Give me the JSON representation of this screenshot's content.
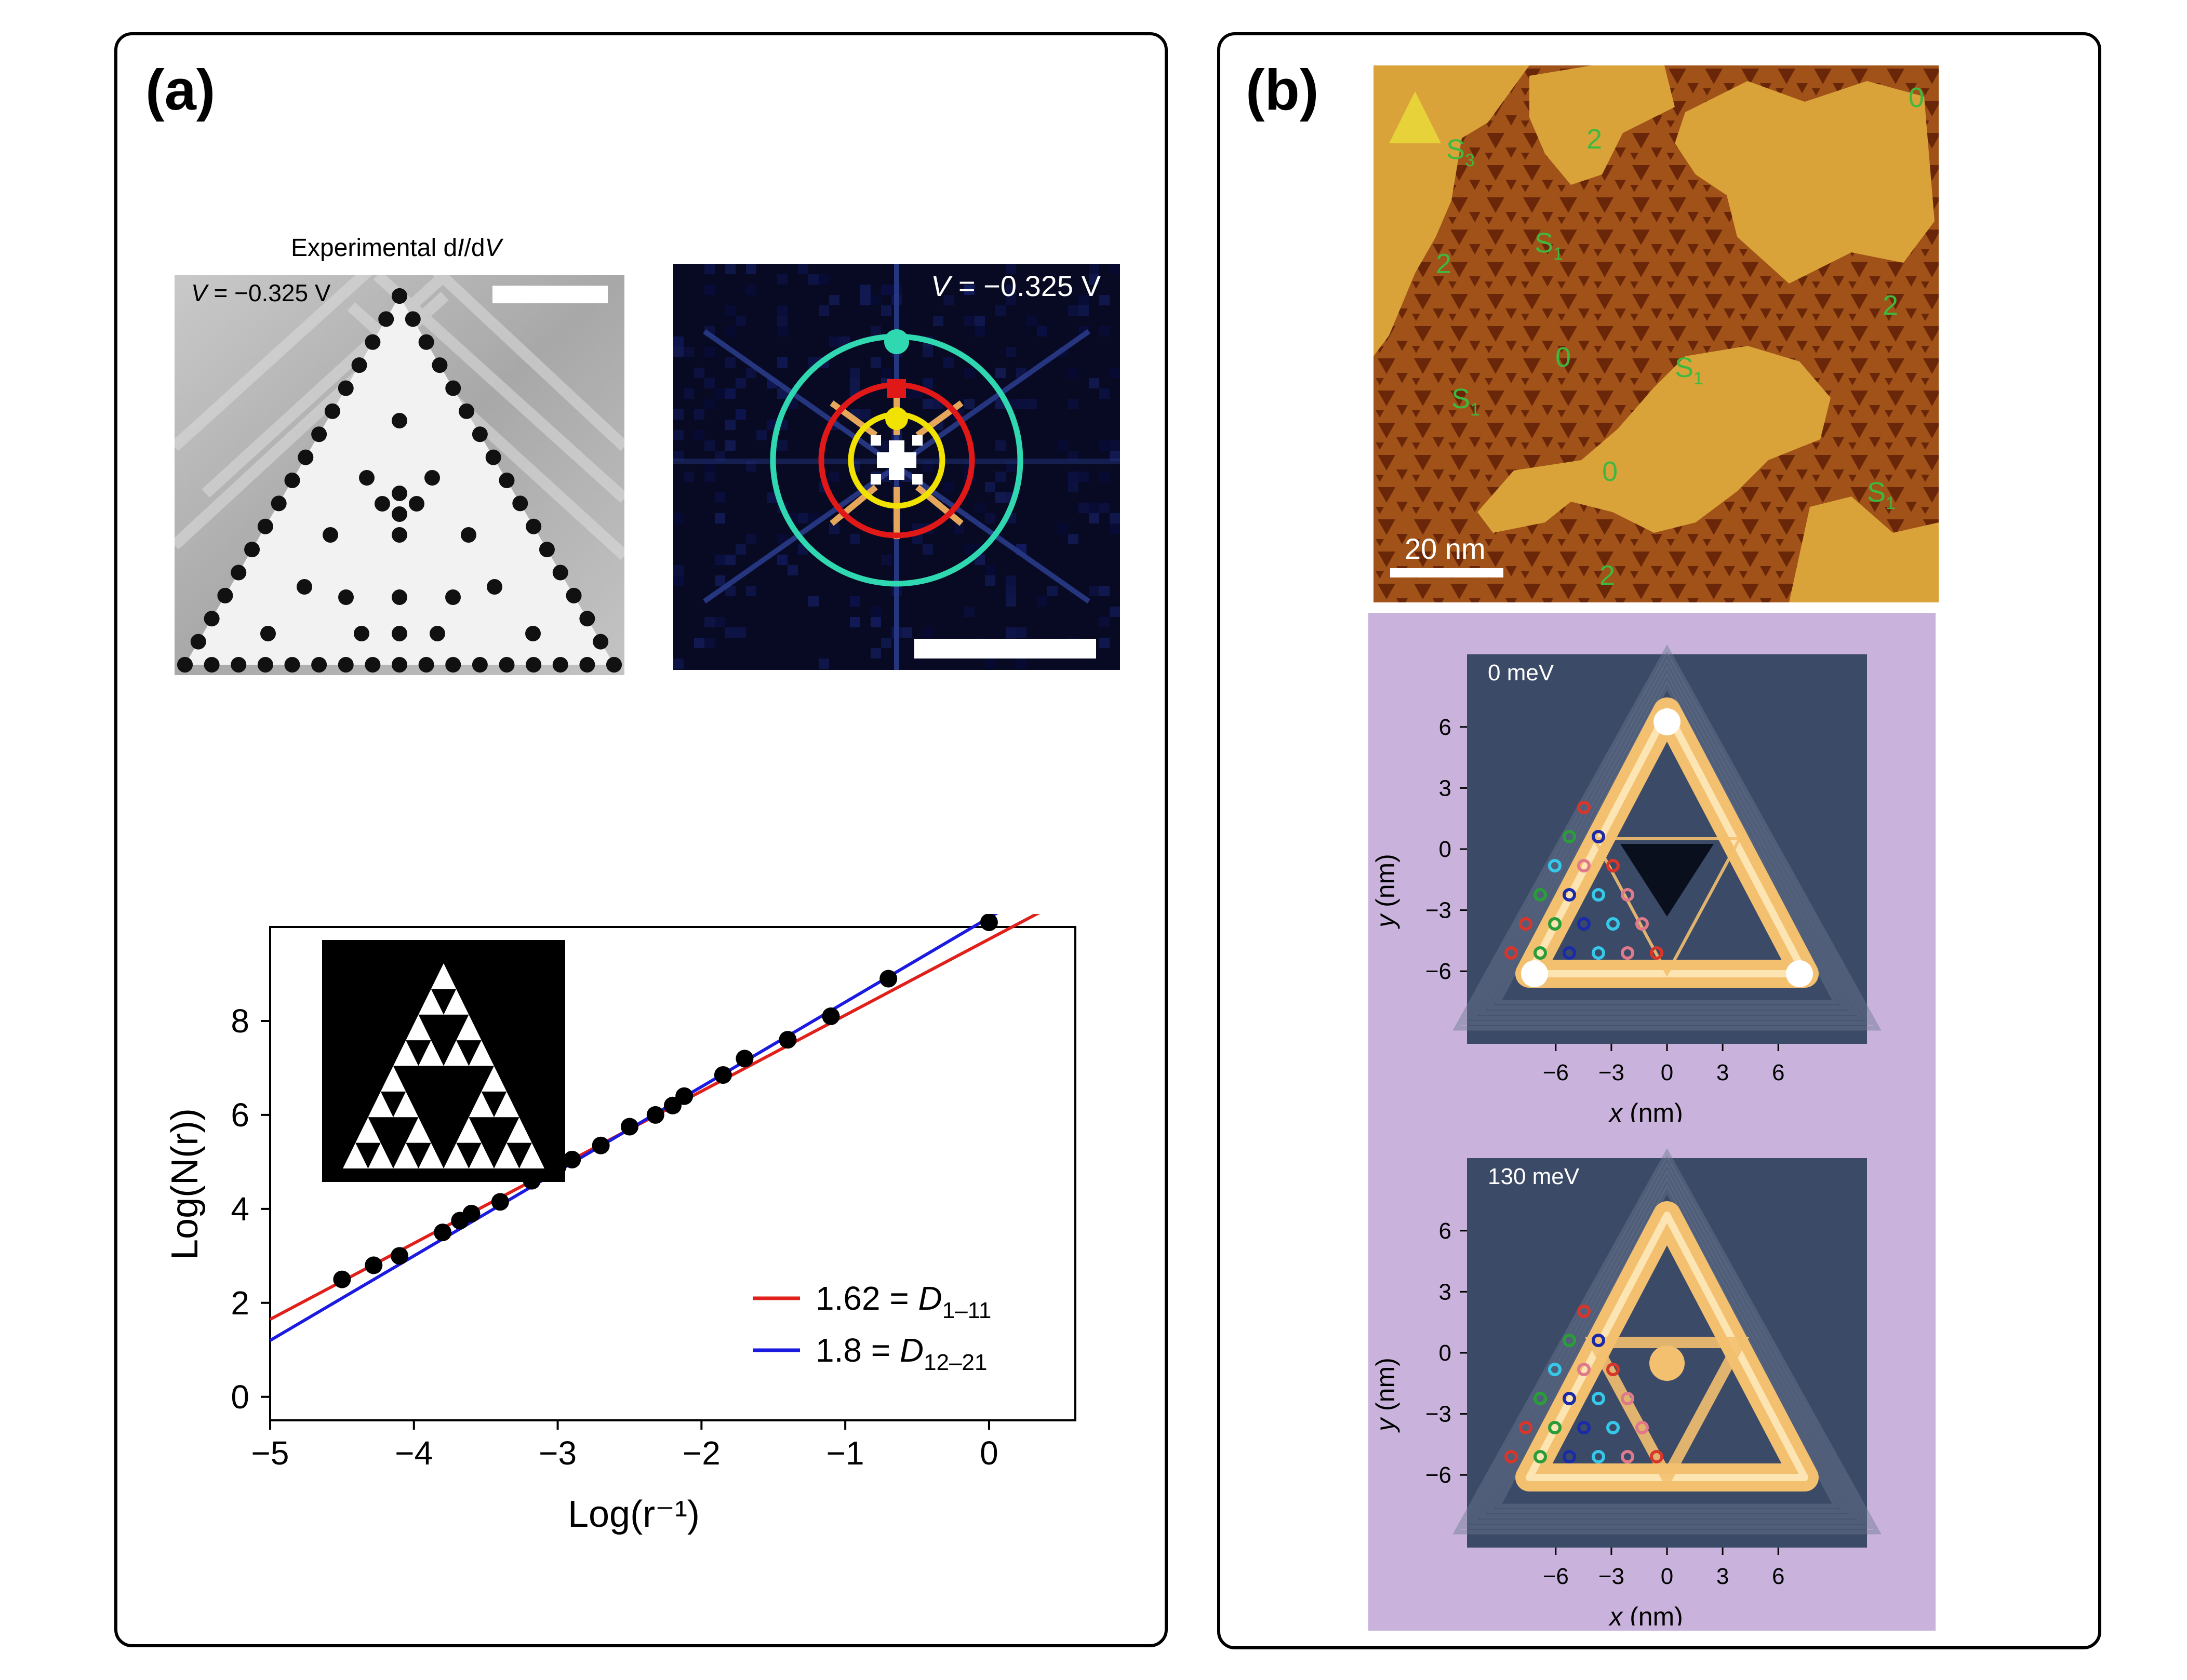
{
  "panel_a": {
    "label": "(a)",
    "stm_title_pre": "Experimental d",
    "stm_title_I": "I",
    "stm_title_mid": "/d",
    "stm_title_V": "V",
    "stm_voltage_V": "V",
    "stm_voltage_val": " = −0.325 V",
    "fft_voltage_V": "V",
    "fft_voltage_val": " = −0.325 V",
    "colors": {
      "cyan_ring": "#2fd8b0",
      "red_ring": "#e01818",
      "yellow_ring": "#f2e200"
    }
  },
  "panel_b": {
    "label": "(b)",
    "topo": {
      "scale_text": "20 nm",
      "labels": [
        {
          "t": "S",
          "sub": "3"
        },
        {
          "t": "2",
          "sub": ""
        },
        {
          "t": "0",
          "sub": ""
        },
        {
          "t": "S",
          "sub": "1"
        },
        {
          "t": "2",
          "sub": ""
        },
        {
          "t": "2",
          "sub": ""
        },
        {
          "t": "0",
          "sub": ""
        },
        {
          "t": "S",
          "sub": "1"
        },
        {
          "t": "S",
          "sub": "1"
        },
        {
          "t": "0",
          "sub": ""
        },
        {
          "t": "S",
          "sub": "1"
        },
        {
          "t": "2",
          "sub": ""
        }
      ]
    },
    "maps": [
      {
        "energy": "0 meV",
        "xticks": [
          "−6",
          "−3",
          "0",
          "3",
          "6"
        ],
        "yticks": [
          "6",
          "3",
          "0",
          "−3",
          "−6"
        ],
        "xlabel_var": "x",
        "xlabel_unit": " (nm)",
        "ylabel_var": "y",
        "ylabel_unit": " (nm)"
      },
      {
        "energy": "130 meV",
        "xticks": [
          "−6",
          "−3",
          "0",
          "3",
          "6"
        ],
        "yticks": [
          "6",
          "3",
          "0",
          "−3",
          "−6"
        ],
        "xlabel_var": "x",
        "xlabel_unit": " (nm)",
        "ylabel_var": "y",
        "ylabel_unit": " (nm)"
      }
    ],
    "colors": {
      "background": "#c9b3dc",
      "map_bg": "#3b4a66",
      "glow": "#f3c070"
    }
  },
  "chart_data": {
    "type": "scatter",
    "xlabel": "Log(r⁻¹)",
    "ylabel": "Log(N(r))",
    "xlim": [
      -5,
      0.6
    ],
    "ylim": [
      -0.5,
      10
    ],
    "xticks": [
      -5,
      -4,
      -3,
      -2,
      -1,
      0
    ],
    "xtick_labels": [
      "−5",
      "−4",
      "−3",
      "−2",
      "−1",
      "0"
    ],
    "yticks": [
      0,
      2,
      4,
      6,
      8
    ],
    "ytick_labels": [
      "0",
      "2",
      "4",
      "6",
      "8"
    ],
    "series": [
      {
        "type": "scatter",
        "color": "#000000",
        "x": [
          -4.5,
          -4.28,
          -4.1,
          -3.8,
          -3.68,
          -3.6,
          -3.4,
          -3.18,
          -3.0,
          -2.9,
          -2.7,
          -2.5,
          -2.32,
          -2.2,
          -2.12,
          -1.85,
          -1.7,
          -1.4,
          -1.1,
          -0.7,
          0.0
        ],
        "y": [
          2.5,
          2.8,
          3.0,
          3.5,
          3.75,
          3.9,
          4.15,
          4.6,
          4.9,
          5.05,
          5.35,
          5.75,
          6.0,
          6.2,
          6.4,
          6.85,
          7.2,
          7.6,
          8.1,
          8.9,
          10.1
        ]
      },
      {
        "type": "line",
        "color": "#e0201a",
        "x": [
          -5.0,
          0.5
        ],
        "y": [
          1.65,
          10.55
        ]
      },
      {
        "type": "line",
        "color": "#1a1ae0",
        "x": [
          -5.0,
          0.5
        ],
        "y": [
          1.2,
          11.1
        ]
      }
    ],
    "legend": [
      {
        "color": "#e0201a",
        "text": "1.62 = ",
        "var": "D",
        "sub": "1–11"
      },
      {
        "color": "#1a1ae0",
        "text": "1.8 = ",
        "var": "D",
        "sub": "12–21"
      }
    ],
    "legend_position": "lower-right"
  }
}
